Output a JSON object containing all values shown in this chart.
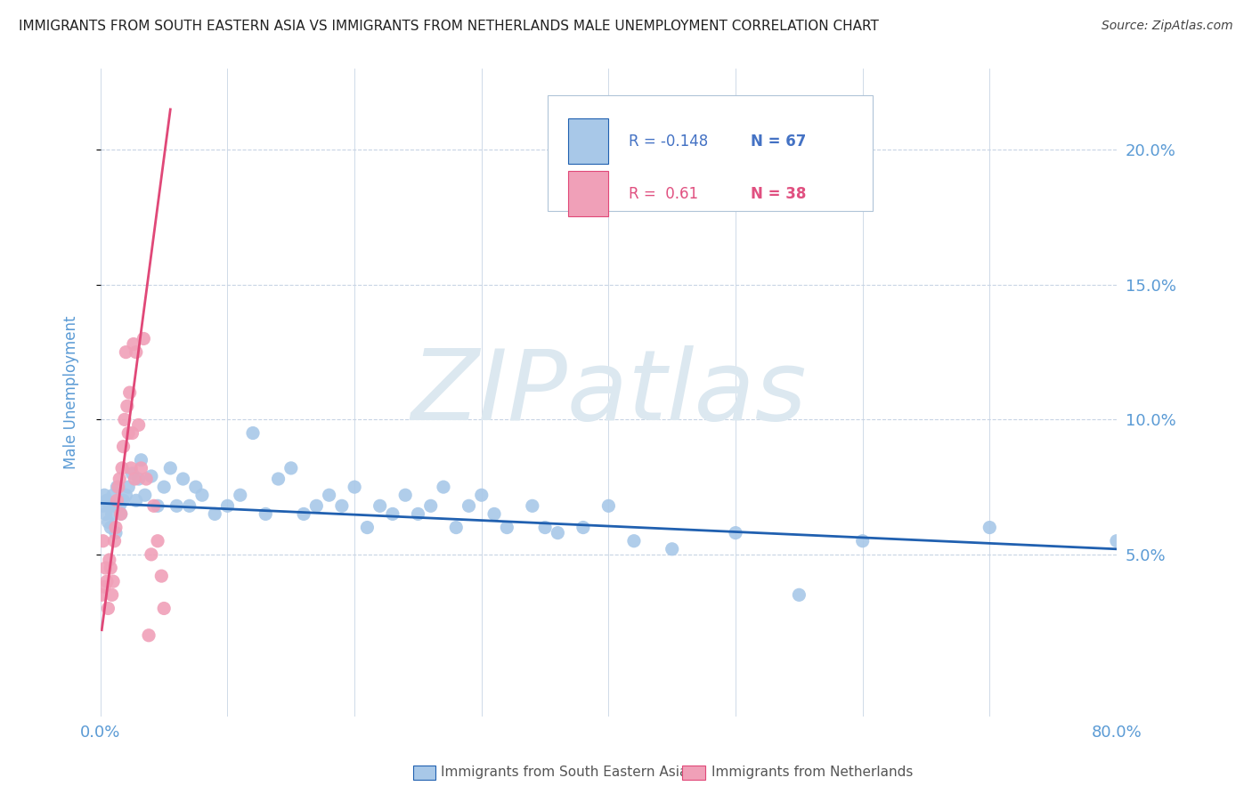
{
  "title": "IMMIGRANTS FROM SOUTH EASTERN ASIA VS IMMIGRANTS FROM NETHERLANDS MALE UNEMPLOYMENT CORRELATION CHART",
  "source": "Source: ZipAtlas.com",
  "ylabel": "Male Unemployment",
  "watermark": "ZIPatlas",
  "series1": {
    "label": "Immigrants from South Eastern Asia",
    "color": "#a8c8e8",
    "line_color": "#2060b0",
    "R": -0.148,
    "N": 67,
    "x": [
      0.002,
      0.003,
      0.004,
      0.005,
      0.006,
      0.007,
      0.008,
      0.009,
      0.01,
      0.011,
      0.012,
      0.013,
      0.015,
      0.016,
      0.018,
      0.02,
      0.022,
      0.025,
      0.028,
      0.03,
      0.032,
      0.035,
      0.04,
      0.045,
      0.05,
      0.055,
      0.06,
      0.065,
      0.07,
      0.075,
      0.08,
      0.09,
      0.1,
      0.11,
      0.12,
      0.13,
      0.14,
      0.15,
      0.16,
      0.17,
      0.18,
      0.19,
      0.2,
      0.21,
      0.22,
      0.23,
      0.24,
      0.25,
      0.26,
      0.27,
      0.28,
      0.29,
      0.3,
      0.31,
      0.32,
      0.34,
      0.35,
      0.36,
      0.38,
      0.4,
      0.42,
      0.45,
      0.5,
      0.55,
      0.6,
      0.7,
      0.8
    ],
    "y": [
      0.068,
      0.072,
      0.065,
      0.07,
      0.062,
      0.068,
      0.06,
      0.065,
      0.072,
      0.068,
      0.058,
      0.075,
      0.068,
      0.065,
      0.07,
      0.072,
      0.075,
      0.08,
      0.07,
      0.078,
      0.085,
      0.072,
      0.079,
      0.068,
      0.075,
      0.082,
      0.068,
      0.078,
      0.068,
      0.075,
      0.072,
      0.065,
      0.068,
      0.072,
      0.095,
      0.065,
      0.078,
      0.082,
      0.065,
      0.068,
      0.072,
      0.068,
      0.075,
      0.06,
      0.068,
      0.065,
      0.072,
      0.065,
      0.068,
      0.075,
      0.06,
      0.068,
      0.072,
      0.065,
      0.06,
      0.068,
      0.06,
      0.058,
      0.06,
      0.068,
      0.055,
      0.052,
      0.058,
      0.035,
      0.055,
      0.06,
      0.055
    ]
  },
  "series2": {
    "label": "Immigrants from Netherlands",
    "color": "#f0a0b8",
    "line_color": "#e04878",
    "R": 0.61,
    "N": 38,
    "x": [
      0.001,
      0.002,
      0.003,
      0.004,
      0.005,
      0.006,
      0.007,
      0.008,
      0.009,
      0.01,
      0.011,
      0.012,
      0.013,
      0.014,
      0.015,
      0.016,
      0.017,
      0.018,
      0.019,
      0.02,
      0.021,
      0.022,
      0.023,
      0.024,
      0.025,
      0.026,
      0.027,
      0.028,
      0.03,
      0.032,
      0.034,
      0.036,
      0.038,
      0.04,
      0.042,
      0.045,
      0.048,
      0.05
    ],
    "y": [
      0.035,
      0.055,
      0.038,
      0.045,
      0.04,
      0.03,
      0.048,
      0.045,
      0.035,
      0.04,
      0.055,
      0.06,
      0.07,
      0.075,
      0.078,
      0.065,
      0.082,
      0.09,
      0.1,
      0.125,
      0.105,
      0.095,
      0.11,
      0.082,
      0.095,
      0.128,
      0.078,
      0.125,
      0.098,
      0.082,
      0.13,
      0.078,
      0.02,
      0.05,
      0.068,
      0.055,
      0.042,
      0.03
    ]
  },
  "blue_line": {
    "x0": 0.0,
    "y0": 0.069,
    "x1": 0.8,
    "y1": 0.052
  },
  "pink_line": {
    "x0": 0.001,
    "y0": 0.022,
    "x1": 0.055,
    "y1": 0.215
  },
  "xlim": [
    0.0,
    0.8
  ],
  "ylim": [
    -0.01,
    0.23
  ],
  "yticks": [
    0.05,
    0.1,
    0.15,
    0.2
  ],
  "ytick_labels": [
    "5.0%",
    "10.0%",
    "15.0%",
    "20.0%"
  ],
  "xtick_left_label": "0.0%",
  "xtick_right_label": "80.0%",
  "title_color": "#222222",
  "source_color": "#444444",
  "axis_label_color": "#5b9bd5",
  "grid_color": "#c8d4e4",
  "watermark_color": "#dce8f0",
  "legend_R_color_blue": "#4472c4",
  "legend_R_color_pink": "#e05080",
  "legend_N_color": "#e05080"
}
